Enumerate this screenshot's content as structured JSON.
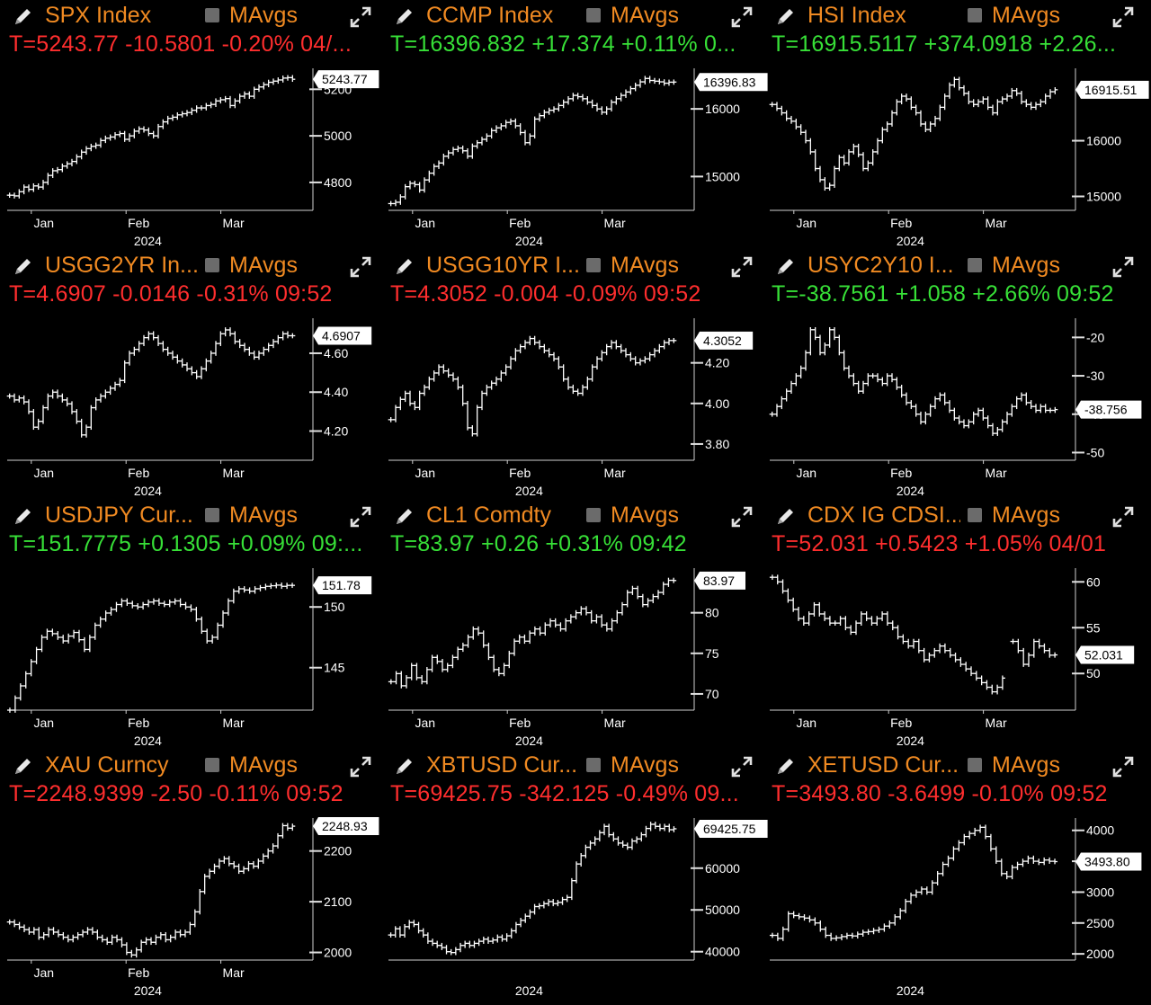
{
  "chart_data": [
    {
      "type": "line",
      "ticker": "SPX Index",
      "ma_label": "MAvgs",
      "quote": "T=5243.77 -10.5801 -0.20% 04/...",
      "direction": "neg",
      "x_labels": [
        "Jan",
        "Feb",
        "Mar"
      ],
      "year_label": "2024",
      "last_label": "5243.77",
      "yticks": [
        4800,
        5000,
        5200
      ],
      "ylim": [
        4680,
        5290
      ],
      "values": [
        4745,
        4742,
        4760,
        4780,
        4770,
        4785,
        4780,
        4800,
        4830,
        4850,
        4855,
        4870,
        4880,
        4890,
        4910,
        4930,
        4945,
        4955,
        4960,
        4980,
        4990,
        4995,
        5005,
        5010,
        4985,
        5000,
        5020,
        5030,
        5025,
        5010,
        5000,
        5040,
        5060,
        5075,
        5080,
        5090,
        5095,
        5100,
        5110,
        5120,
        5120,
        5130,
        5135,
        5150,
        5155,
        5160,
        5130,
        5150,
        5170,
        5180,
        5170,
        5200,
        5210,
        5220,
        5230,
        5235,
        5240,
        5248,
        5250,
        5243
      ]
    },
    {
      "type": "line",
      "ticker": "CCMP Index",
      "ma_label": "MAvgs",
      "quote": "T=16396.832 +17.374 +0.11% 0...",
      "direction": "pos",
      "x_labels": [
        "Jan",
        "Feb",
        "Mar"
      ],
      "year_label": "2024",
      "last_label": "16396.83",
      "yticks": [
        15000,
        16000
      ],
      "ylim": [
        14500,
        16600
      ],
      "values": [
        14600,
        14620,
        14700,
        14850,
        14900,
        14880,
        14800,
        14950,
        15050,
        15150,
        15200,
        15300,
        15350,
        15400,
        15420,
        15380,
        15300,
        15450,
        15500,
        15550,
        15600,
        15680,
        15720,
        15750,
        15800,
        15820,
        15750,
        15650,
        15500,
        15600,
        15850,
        15900,
        15950,
        15980,
        16000,
        16050,
        16100,
        16150,
        16200,
        16180,
        16150,
        16100,
        16050,
        16000,
        15950,
        16000,
        16100,
        16150,
        16200,
        16250,
        16300,
        16350,
        16400,
        16450,
        16420,
        16410,
        16400,
        16380,
        16395,
        16397
      ]
    },
    {
      "type": "line",
      "ticker": "HSI Index",
      "ma_label": "MAvgs",
      "quote": "T=16915.5117 +374.0918 +2.26...",
      "direction": "pos",
      "x_labels": [
        "Jan",
        "Feb",
        "Mar"
      ],
      "year_label": "2024",
      "last_label": "16915.51",
      "yticks": [
        15000,
        16000
      ],
      "ylim": [
        14750,
        17300
      ],
      "values": [
        16650,
        16580,
        16500,
        16400,
        16350,
        16250,
        16150,
        16000,
        15800,
        15500,
        15300,
        15150,
        15200,
        15500,
        15700,
        15600,
        15800,
        15900,
        15750,
        15500,
        15600,
        15800,
        16000,
        16200,
        16300,
        16500,
        16700,
        16800,
        16750,
        16600,
        16500,
        16300,
        16200,
        16300,
        16400,
        16600,
        16800,
        17000,
        17100,
        16950,
        16850,
        16700,
        16650,
        16700,
        16750,
        16600,
        16500,
        16700,
        16750,
        16800,
        16900,
        16850,
        16700,
        16650,
        16600,
        16650,
        16700,
        16800,
        16880,
        16915
      ]
    },
    {
      "type": "line",
      "ticker": "USGG2YR In...",
      "ma_label": "MAvgs",
      "quote": "T=4.6907 -0.0146 -0.31% 09:52",
      "direction": "neg",
      "x_labels": [
        "Jan",
        "Feb",
        "Mar"
      ],
      "year_label": "2024",
      "last_label": "4.6907",
      "yticks": [
        4.2,
        4.4,
        4.6
      ],
      "ylim": [
        4.05,
        4.78
      ],
      "values": [
        4.38,
        4.36,
        4.37,
        4.35,
        4.3,
        4.22,
        4.25,
        4.32,
        4.38,
        4.4,
        4.38,
        4.36,
        4.34,
        4.3,
        4.25,
        4.18,
        4.22,
        4.32,
        4.36,
        4.38,
        4.4,
        4.42,
        4.44,
        4.46,
        4.55,
        4.6,
        4.62,
        4.65,
        4.68,
        4.7,
        4.68,
        4.65,
        4.62,
        4.6,
        4.58,
        4.56,
        4.54,
        4.52,
        4.5,
        4.48,
        4.52,
        4.56,
        4.6,
        4.65,
        4.7,
        4.72,
        4.7,
        4.66,
        4.64,
        4.62,
        4.6,
        4.58,
        4.6,
        4.62,
        4.64,
        4.66,
        4.68,
        4.7,
        4.69,
        4.69
      ]
    },
    {
      "type": "line",
      "ticker": "USGG10YR I...",
      "ma_label": "MAvgs",
      "quote": "T=4.3052 -0.004 -0.09% 09:52",
      "direction": "neg",
      "x_labels": [
        "Jan",
        "Feb",
        "Mar"
      ],
      "year_label": "2024",
      "last_label": "4.3052",
      "yticks": [
        3.8,
        4.0,
        4.2
      ],
      "ylim": [
        3.72,
        4.42
      ],
      "values": [
        3.92,
        3.98,
        4.02,
        4.05,
        4.0,
        3.98,
        4.05,
        4.08,
        4.12,
        4.15,
        4.18,
        4.16,
        4.14,
        4.12,
        4.08,
        4.0,
        3.88,
        3.85,
        3.98,
        4.05,
        4.08,
        4.1,
        4.12,
        4.15,
        4.18,
        4.22,
        4.26,
        4.28,
        4.3,
        4.32,
        4.3,
        4.28,
        4.26,
        4.24,
        4.22,
        4.18,
        4.12,
        4.08,
        4.06,
        4.05,
        4.08,
        4.12,
        4.18,
        4.22,
        4.25,
        4.28,
        4.3,
        4.28,
        4.26,
        4.24,
        4.22,
        4.2,
        4.21,
        4.22,
        4.24,
        4.26,
        4.28,
        4.3,
        4.31,
        4.31
      ]
    },
    {
      "type": "line",
      "ticker": "USYC2Y10 I...",
      "ma_label": "MAvgs",
      "quote": "T=-38.7561 +1.058 +2.66% 09:52",
      "direction": "pos",
      "x_labels": [
        "Jan",
        "Feb",
        "Mar"
      ],
      "year_label": "2024",
      "last_label": "-38.756",
      "yticks": [
        -20,
        -30,
        -40,
        -50
      ],
      "ylim": [
        -52,
        -15
      ],
      "values": [
        -40,
        -38,
        -36,
        -34,
        -32,
        -30,
        -28,
        -24,
        -18,
        -20,
        -24,
        -22,
        -18,
        -20,
        -24,
        -28,
        -30,
        -32,
        -34,
        -32,
        -30,
        -30,
        -31,
        -32,
        -30,
        -31,
        -33,
        -35,
        -37,
        -38,
        -40,
        -42,
        -40,
        -38,
        -36,
        -35,
        -37,
        -39,
        -41,
        -42,
        -43,
        -42,
        -40,
        -39,
        -41,
        -43,
        -45,
        -44,
        -42,
        -40,
        -38,
        -36,
        -35,
        -37,
        -38,
        -39,
        -38,
        -39,
        -39,
        -38.8
      ]
    },
    {
      "type": "line",
      "ticker": "USDJPY Cur...",
      "ma_label": "MAvgs",
      "quote": "T=151.7775 +0.1305 +0.09% 09:...",
      "direction": "pos",
      "x_labels": [
        "Jan",
        "Feb",
        "Mar"
      ],
      "year_label": "2024",
      "last_label": "151.78",
      "yticks": [
        145,
        150
      ],
      "ylim": [
        141.5,
        153.2
      ],
      "values": [
        141.5,
        142.5,
        143.5,
        144.5,
        145.5,
        146.5,
        147.5,
        148.0,
        147.8,
        147.5,
        147.2,
        147.6,
        147.9,
        147.3,
        146.5,
        147.5,
        148.5,
        149.0,
        149.5,
        149.8,
        150.2,
        150.5,
        150.3,
        150.1,
        150.0,
        150.2,
        150.4,
        150.5,
        150.3,
        150.2,
        150.4,
        150.5,
        150.2,
        150.0,
        149.8,
        149.0,
        148.0,
        147.2,
        147.5,
        148.5,
        149.5,
        150.5,
        151.3,
        151.5,
        151.4,
        151.3,
        151.5,
        151.6,
        151.7,
        151.75,
        151.8,
        151.7,
        151.78,
        151.78
      ]
    },
    {
      "type": "line",
      "ticker": "CL1 Comdty",
      "ma_label": "MAvgs",
      "quote": "T=83.97 +0.26 +0.31% 09:42",
      "direction": "pos",
      "x_labels": [
        "Jan",
        "Feb",
        "Mar"
      ],
      "year_label": "2024",
      "last_label": "83.97",
      "yticks": [
        70,
        75,
        80
      ],
      "ylim": [
        68,
        85.5
      ],
      "values": [
        71.5,
        72.5,
        71.0,
        72.0,
        73.5,
        72.0,
        71.5,
        73.0,
        74.5,
        74.0,
        73.0,
        73.5,
        74.5,
        75.5,
        76.0,
        77.0,
        78.0,
        77.5,
        76.0,
        74.5,
        73.0,
        72.5,
        73.5,
        75.0,
        76.5,
        77.0,
        76.5,
        77.5,
        78.0,
        77.5,
        78.5,
        79.0,
        78.5,
        78.0,
        79.0,
        79.5,
        80.0,
        80.5,
        80.0,
        79.0,
        79.5,
        78.5,
        78.0,
        79.0,
        80.0,
        81.0,
        82.5,
        83.0,
        82.0,
        81.0,
        81.5,
        82.0,
        82.5,
        83.5,
        84.0,
        83.97
      ]
    },
    {
      "type": "line",
      "ticker": "CDX IG CDSI...",
      "ma_label": "MAvgs",
      "quote": "T=52.031 +0.5423 +1.05% 04/01",
      "direction": "neg",
      "x_labels": [
        "Jan",
        "Feb",
        "Mar"
      ],
      "year_label": "2024",
      "last_label": "52.031",
      "yticks": [
        50,
        55,
        60
      ],
      "ylim": [
        46,
        61.5
      ],
      "values": [
        60.5,
        60.0,
        59.0,
        58.0,
        57.0,
        56.0,
        55.5,
        56.5,
        57.5,
        56.5,
        56.0,
        55.5,
        55.5,
        56.0,
        55.0,
        54.5,
        55.5,
        56.5,
        56.0,
        55.5,
        56.0,
        56.5,
        55.5,
        55.0,
        54.0,
        53.5,
        53.0,
        53.5,
        52.5,
        51.5,
        52.0,
        52.5,
        53.0,
        52.5,
        52.0,
        51.5,
        51.0,
        50.5,
        50.0,
        49.5,
        49.0,
        48.5,
        48.0,
        48.5,
        49.5,
        null,
        53.5,
        52.5,
        51.0,
        52.0,
        53.5,
        53.0,
        52.5,
        52.0,
        52.03
      ]
    },
    {
      "type": "line",
      "ticker": "XAU Curncy",
      "ma_label": "MAvgs",
      "quote": "T=2248.9399 -2.50 -0.11% 09:52",
      "direction": "neg",
      "x_labels": [
        "Jan",
        "Feb",
        "Mar"
      ],
      "year_label": "2024",
      "last_label": "2248.93",
      "yticks": [
        2000,
        2100,
        2200
      ],
      "ylim": [
        1985,
        2265
      ],
      "values": [
        2060,
        2055,
        2050,
        2045,
        2040,
        2045,
        2030,
        2035,
        2045,
        2040,
        2035,
        2030,
        2025,
        2030,
        2035,
        2040,
        2045,
        2040,
        2030,
        2025,
        2020,
        2030,
        2025,
        2015,
        2000,
        1995,
        2005,
        2020,
        2025,
        2020,
        2030,
        2035,
        2025,
        2030,
        2040,
        2035,
        2040,
        2055,
        2080,
        2120,
        2150,
        2160,
        2170,
        2180,
        2185,
        2175,
        2170,
        2160,
        2165,
        2175,
        2170,
        2180,
        2190,
        2200,
        2210,
        2230,
        2250,
        2245,
        2248.94
      ]
    },
    {
      "type": "line",
      "ticker": "XBTUSD Cur...",
      "ma_label": "MAvgs",
      "quote": "T=69425.75 -342.125 -0.49% 09...",
      "direction": "neg",
      "x_labels": [],
      "year_label": "2024",
      "last_label": "69425.75",
      "yticks": [
        40000,
        50000,
        60000
      ],
      "ylim": [
        38000,
        72000
      ],
      "values": [
        44000,
        45500,
        44000,
        46000,
        47000,
        46500,
        45000,
        44000,
        42500,
        42000,
        41500,
        41000,
        40000,
        39800,
        40500,
        41500,
        42000,
        41500,
        42000,
        42500,
        43000,
        42500,
        42800,
        43500,
        43000,
        43800,
        45000,
        46500,
        47500,
        48500,
        49500,
        50800,
        51000,
        51500,
        52000,
        51500,
        51800,
        52500,
        53000,
        57000,
        61000,
        63000,
        65000,
        66000,
        67000,
        68500,
        70000,
        68000,
        67000,
        66000,
        65500,
        65000,
        66500,
        67000,
        68000,
        69500,
        70500,
        70000,
        69500,
        70000,
        69200,
        69425
      ]
    },
    {
      "type": "line",
      "ticker": "XETUSD Cur...",
      "ma_label": "MAvgs",
      "quote": "T=3493.80 -3.6499 -0.10% 09:52",
      "direction": "neg",
      "x_labels": [],
      "year_label": "2024",
      "last_label": "3493.80",
      "yticks": [
        2000,
        2500,
        3000,
        3500,
        4000
      ],
      "ylim": [
        1900,
        4200
      ],
      "values": [
        2300,
        2250,
        2400,
        2650,
        2620,
        2600,
        2580,
        2550,
        2500,
        2400,
        2300,
        2250,
        2260,
        2280,
        2300,
        2290,
        2320,
        2350,
        2360,
        2380,
        2400,
        2450,
        2500,
        2600,
        2700,
        2850,
        2950,
        3000,
        3050,
        3000,
        3150,
        3300,
        3450,
        3550,
        3700,
        3800,
        3900,
        3950,
        4000,
        4050,
        3900,
        3700,
        3500,
        3300,
        3250,
        3400,
        3450,
        3500,
        3550,
        3500,
        3480,
        3520,
        3500,
        3493.8
      ]
    }
  ]
}
